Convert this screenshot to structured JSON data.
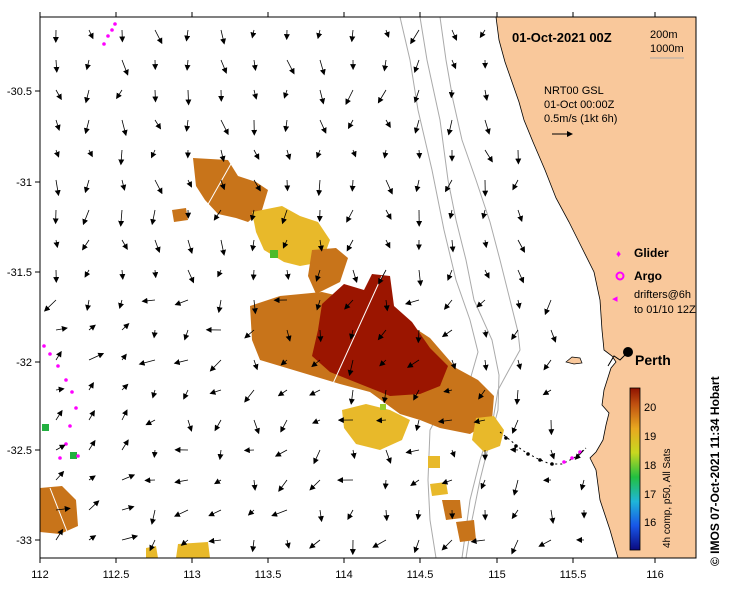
{
  "title": "01-Oct-2021 00Z",
  "depth_contours": {
    "shallow": "200m",
    "deep": "1000m"
  },
  "current_info": {
    "line1": "NRT00 GSL",
    "line2": "01-Oct 00:00Z",
    "line3": "0.5m/s (1kt 6h)"
  },
  "legend": {
    "glider": "Glider",
    "argo": "Argo",
    "drifters_line1": "drifters@6h",
    "drifters_line2": "to 01/10 12Z"
  },
  "city": "Perth",
  "colorbar": {
    "ticks": [
      "20",
      "19",
      "18",
      "17",
      "16"
    ],
    "label": "4h comp, p50, All Sats"
  },
  "credit": "© IMOS 07-Oct-2021 11:34 Hobart",
  "lon_ticks": [
    "112",
    "112.5",
    "113",
    "113.5",
    "114",
    "114.5",
    "115",
    "115.5",
    "116"
  ],
  "lat_ticks": [
    "-30.5",
    "-31",
    "-31.5",
    "-32",
    "-32.5",
    "-33"
  ],
  "colors": {
    "land": "#f9c89b",
    "hot": "#9b1500",
    "warm": "#c8741a",
    "mid": "#e8b92a",
    "cool": "#9ccd2a",
    "glider": "#ff00ff"
  }
}
